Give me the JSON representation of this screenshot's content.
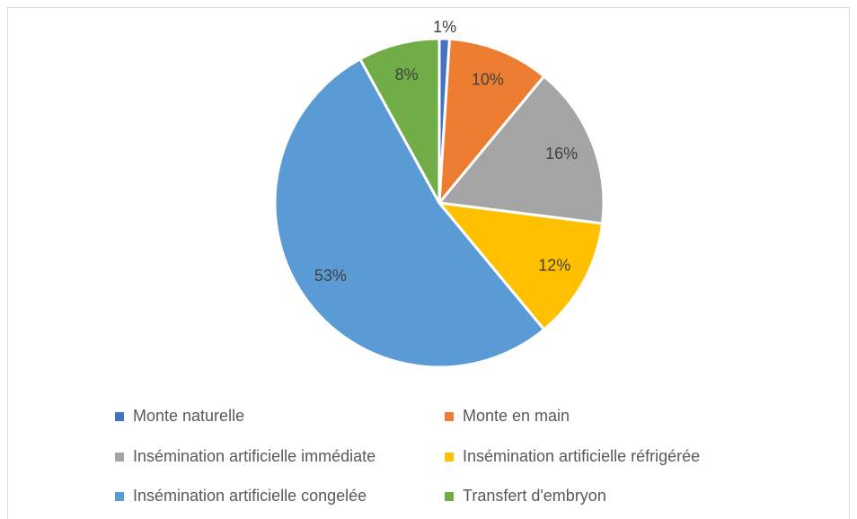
{
  "chart_data": {
    "type": "pie",
    "categories": [
      "Monte naturelle",
      "Monte en main",
      "Insémination artificielle immédiate",
      "Insémination artificielle réfrigérée",
      "Insémination artificielle congelée",
      "Transfert d'embryon"
    ],
    "values": [
      1,
      10,
      16,
      12,
      53,
      8
    ],
    "value_labels": [
      "1%",
      "10%",
      "16%",
      "12%",
      "53%",
      "8%"
    ],
    "colors": [
      "#4472c4",
      "#ed7d31",
      "#a5a5a5",
      "#ffc000",
      "#5b9bd5",
      "#70ad47"
    ],
    "legend": "bottom"
  }
}
